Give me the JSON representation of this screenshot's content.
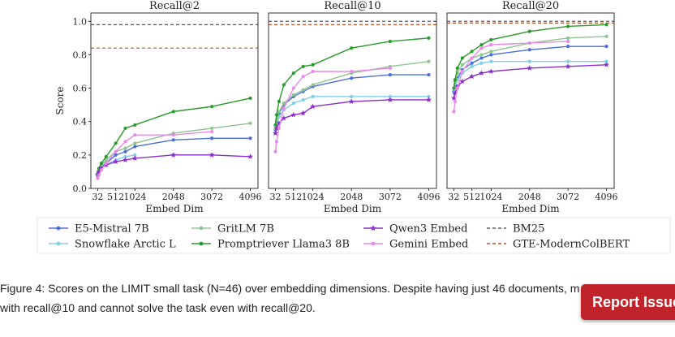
{
  "figure": {
    "caption_line1": "Figure 4: Scores on the LIMIT small task (N=46) over embedding dimensions. Despite having just 46 documents, m",
    "caption_line2": "with recall@10 and cannot solve the task even with recall@20."
  },
  "report_button": {
    "label": "Report Issue"
  },
  "colors": {
    "E5-Mistral 7B": "#4a6fd6",
    "Snowflake Arctic L": "#7ecfe6",
    "GritLM 7B": "#8fc48f",
    "Promptriever Llama3 8B": "#2a9a2a",
    "Qwen3 Embed": "#8a2fc9",
    "Gemini Embed": "#e88ae8",
    "BM25": "#5a5a5a",
    "GTE-ModernColBERT": "#c0502a"
  },
  "chart_data": [
    {
      "type": "line",
      "title": "Recall@2",
      "xlabel": "Embed Dim",
      "ylabel": "Score",
      "xticks": [
        32,
        512,
        1024,
        2048,
        3072,
        4096
      ],
      "yticks": [
        0.0,
        0.2,
        0.4,
        0.6,
        0.8,
        1.0
      ],
      "xlim": [
        -150,
        4300
      ],
      "ylim": [
        0.0,
        1.05
      ],
      "series": [
        {
          "name": "E5-Mistral 7B",
          "x": [
            32,
            64,
            128,
            256,
            512,
            768,
            1024,
            2048,
            3072,
            4096
          ],
          "y": [
            0.08,
            0.1,
            0.13,
            0.15,
            0.2,
            0.22,
            0.25,
            0.29,
            0.3,
            0.3
          ]
        },
        {
          "name": "Snowflake Arctic L",
          "x": [
            32,
            64,
            128,
            256,
            512,
            768,
            1024
          ],
          "y": [
            0.08,
            0.1,
            0.12,
            0.14,
            0.17,
            0.19,
            0.2
          ]
        },
        {
          "name": "GritLM 7B",
          "x": [
            32,
            64,
            128,
            256,
            512,
            768,
            1024,
            2048,
            3072,
            4096
          ],
          "y": [
            0.09,
            0.11,
            0.14,
            0.17,
            0.22,
            0.24,
            0.27,
            0.33,
            0.36,
            0.39
          ]
        },
        {
          "name": "Promptriever Llama3 8B",
          "x": [
            32,
            64,
            128,
            256,
            512,
            768,
            1024,
            2048,
            3072,
            4096
          ],
          "y": [
            0.09,
            0.12,
            0.15,
            0.19,
            0.27,
            0.36,
            0.38,
            0.46,
            0.49,
            0.54
          ]
        },
        {
          "name": "Qwen3 Embed",
          "x": [
            32,
            64,
            128,
            256,
            512,
            768,
            1024,
            2048,
            3072,
            4096
          ],
          "y": [
            0.08,
            0.1,
            0.12,
            0.14,
            0.16,
            0.17,
            0.18,
            0.2,
            0.2,
            0.19
          ]
        },
        {
          "name": "Gemini Embed",
          "x": [
            32,
            64,
            128,
            256,
            512,
            768,
            1024,
            2048,
            3072
          ],
          "y": [
            0.06,
            0.08,
            0.11,
            0.15,
            0.22,
            0.28,
            0.32,
            0.32,
            0.34
          ]
        }
      ],
      "hlines": [
        {
          "name": "BM25",
          "y": 0.98
        },
        {
          "name": "GTE-ModernColBERT",
          "y": 0.84
        }
      ]
    },
    {
      "type": "line",
      "title": "Recall@10",
      "xlabel": "Embed Dim",
      "xticks": [
        32,
        512,
        1024,
        2048,
        3072,
        4096
      ],
      "xlim": [
        -150,
        4300
      ],
      "ylim": [
        0.0,
        1.05
      ],
      "series": [
        {
          "name": "E5-Mistral 7B",
          "x": [
            32,
            64,
            128,
            256,
            512,
            768,
            1024,
            2048,
            3072,
            4096
          ],
          "y": [
            0.35,
            0.4,
            0.45,
            0.5,
            0.55,
            0.58,
            0.61,
            0.66,
            0.68,
            0.68
          ]
        },
        {
          "name": "Snowflake Arctic L",
          "x": [
            32,
            64,
            128,
            256,
            512,
            768,
            1024,
            2048,
            3072,
            4096
          ],
          "y": [
            0.33,
            0.38,
            0.43,
            0.47,
            0.51,
            0.53,
            0.55,
            0.55,
            0.55,
            0.55
          ]
        },
        {
          "name": "GritLM 7B",
          "x": [
            32,
            64,
            128,
            256,
            512,
            768,
            1024,
            2048,
            3072,
            4096
          ],
          "y": [
            0.36,
            0.41,
            0.46,
            0.51,
            0.56,
            0.59,
            0.62,
            0.69,
            0.73,
            0.76
          ]
        },
        {
          "name": "Promptriever Llama3 8B",
          "x": [
            32,
            64,
            128,
            256,
            512,
            768,
            1024,
            2048,
            3072,
            4096
          ],
          "y": [
            0.38,
            0.44,
            0.52,
            0.62,
            0.69,
            0.73,
            0.74,
            0.84,
            0.88,
            0.9
          ]
        },
        {
          "name": "Qwen3 Embed",
          "x": [
            32,
            64,
            128,
            256,
            512,
            768,
            1024,
            2048,
            3072,
            4096
          ],
          "y": [
            0.33,
            0.36,
            0.39,
            0.42,
            0.44,
            0.45,
            0.49,
            0.52,
            0.53,
            0.53
          ]
        },
        {
          "name": "Gemini Embed",
          "x": [
            32,
            64,
            128,
            256,
            512,
            768,
            1024,
            2048,
            3072
          ],
          "y": [
            0.22,
            0.28,
            0.36,
            0.48,
            0.6,
            0.67,
            0.7,
            0.7,
            0.72
          ]
        }
      ],
      "hlines": [
        {
          "name": "BM25",
          "y": 1.0
        },
        {
          "name": "GTE-ModernColBERT",
          "y": 0.98
        }
      ]
    },
    {
      "type": "line",
      "title": "Recall@20",
      "xlabel": "Embed Dim",
      "xticks": [
        32,
        512,
        1024,
        2048,
        3072,
        4096
      ],
      "xlim": [
        -150,
        4300
      ],
      "ylim": [
        0.0,
        1.05
      ],
      "series": [
        {
          "name": "E5-Mistral 7B",
          "x": [
            32,
            64,
            128,
            256,
            512,
            768,
            1024,
            2048,
            3072,
            4096
          ],
          "y": [
            0.58,
            0.62,
            0.66,
            0.71,
            0.75,
            0.78,
            0.8,
            0.83,
            0.85,
            0.85
          ]
        },
        {
          "name": "Snowflake Arctic L",
          "x": [
            32,
            64,
            128,
            256,
            512,
            768,
            1024,
            2048,
            3072,
            4096
          ],
          "y": [
            0.57,
            0.61,
            0.65,
            0.69,
            0.73,
            0.75,
            0.76,
            0.76,
            0.76,
            0.76
          ]
        },
        {
          "name": "GritLM 7B",
          "x": [
            32,
            64,
            128,
            256,
            512,
            768,
            1024,
            2048,
            3072,
            4096
          ],
          "y": [
            0.6,
            0.64,
            0.69,
            0.74,
            0.78,
            0.8,
            0.82,
            0.87,
            0.9,
            0.91
          ]
        },
        {
          "name": "Promptriever Llama3 8B",
          "x": [
            32,
            64,
            128,
            256,
            512,
            768,
            1024,
            2048,
            3072,
            4096
          ],
          "y": [
            0.6,
            0.65,
            0.72,
            0.78,
            0.82,
            0.86,
            0.89,
            0.94,
            0.97,
            0.98
          ]
        },
        {
          "name": "Qwen3 Embed",
          "x": [
            32,
            64,
            128,
            256,
            512,
            768,
            1024,
            2048,
            3072,
            4096
          ],
          "y": [
            0.54,
            0.57,
            0.61,
            0.64,
            0.67,
            0.69,
            0.7,
            0.72,
            0.73,
            0.74
          ]
        },
        {
          "name": "Gemini Embed",
          "x": [
            32,
            64,
            128,
            256,
            512,
            768,
            1024,
            2048,
            3072
          ],
          "y": [
            0.46,
            0.52,
            0.6,
            0.7,
            0.78,
            0.84,
            0.86,
            0.87,
            0.88
          ]
        }
      ],
      "hlines": [
        {
          "name": "BM25",
          "y": 1.0
        },
        {
          "name": "GTE-ModernColBERT",
          "y": 0.99
        }
      ]
    }
  ],
  "legend": [
    {
      "name": "E5-Mistral 7B",
      "marker": "circle",
      "style": "solid"
    },
    {
      "name": "GritLM 7B",
      "marker": "circle",
      "style": "solid"
    },
    {
      "name": "Qwen3 Embed",
      "marker": "star",
      "style": "solid"
    },
    {
      "name": "BM25",
      "marker": "none",
      "style": "dashed"
    },
    {
      "name": "Snowflake Arctic L",
      "marker": "circle",
      "style": "solid"
    },
    {
      "name": "Promptriever Llama3 8B",
      "marker": "circle",
      "style": "solid"
    },
    {
      "name": "Gemini Embed",
      "marker": "circle",
      "style": "solid"
    },
    {
      "name": "GTE-ModernColBERT",
      "marker": "none",
      "style": "dashed"
    }
  ]
}
